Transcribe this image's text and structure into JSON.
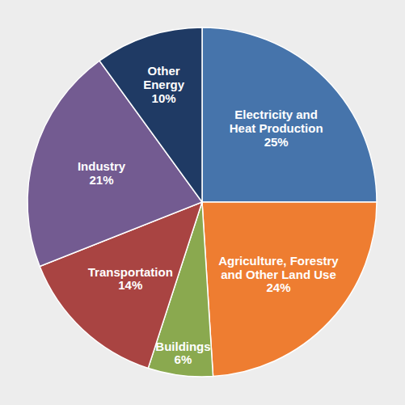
{
  "chart_data": {
    "type": "pie",
    "categories": [
      "Electricity and\nHeat Production",
      "Agriculture, Forestry\nand Other Land Use",
      "Buildings",
      "Transportation",
      "Industry",
      "Other\nEnergy"
    ],
    "values": [
      25,
      24,
      6,
      14,
      21,
      10
    ],
    "value_labels": [
      "25%",
      "24%",
      "6%",
      "14%",
      "21%",
      "10%"
    ],
    "colors": [
      "#4674ab",
      "#ee7d31",
      "#8aa94f",
      "#a94442",
      "#735b91",
      "#1f3a64"
    ],
    "data_labels": true
  }
}
